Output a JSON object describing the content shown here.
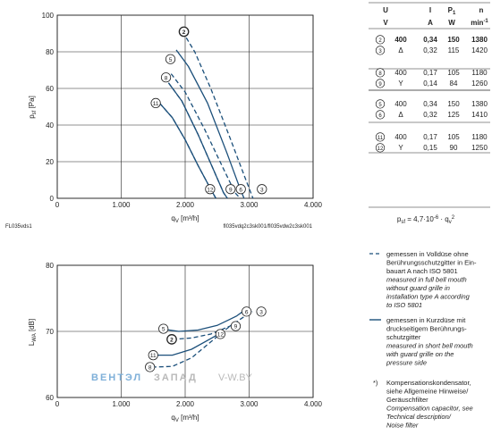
{
  "chart_data": [
    {
      "type": "line",
      "id": "top",
      "ylabel_main": "p",
      "ylabel_sub": "sf",
      "ylabel_unit": " [Pa]",
      "xlabel_main": "q",
      "xlabel_sub": "V",
      "xlabel_unit": " [m³/h]",
      "xlim": [
        0,
        4000
      ],
      "ylim": [
        0,
        100
      ],
      "xticks": [
        0,
        1000,
        2000,
        3000,
        4000
      ],
      "xtick_labels": [
        "0",
        "1.000",
        "2.000",
        "3.000",
        "4.000"
      ],
      "yticks": [
        0,
        20,
        40,
        60,
        80,
        100
      ],
      "ytick_labels": [
        "0",
        "20",
        "40",
        "60",
        "80",
        "100"
      ],
      "corner_left": "FL035vds1",
      "corner_right": "fl035vdq2c3sk001/fl035vdw2c3sk001",
      "series": [
        {
          "name": "2",
          "style": "dashed",
          "x": [
            1960,
            2150,
            2400,
            2700,
            2950,
            3060
          ],
          "y": [
            91,
            80,
            60,
            33,
            10,
            0
          ],
          "label_at": [
            1980,
            91
          ]
        },
        {
          "name": "3",
          "style": "dashed",
          "x": [
            3060,
            3100
          ],
          "y": [
            0,
            0
          ],
          "label_at": [
            3200,
            5
          ]
        },
        {
          "name": "5",
          "style": "solid",
          "x": [
            1860,
            2050,
            2350,
            2650,
            2850,
            2920
          ],
          "y": [
            81,
            72,
            52,
            25,
            6,
            0
          ],
          "label_at": [
            1770,
            76
          ]
        },
        {
          "name": "6",
          "style": "dashed",
          "x": [
            1780,
            2000,
            2300,
            2600,
            2780,
            2860
          ],
          "y": [
            68,
            58,
            38,
            16,
            3,
            0
          ],
          "label_at": [
            2870,
            5
          ]
        },
        {
          "name": "8",
          "style": "dashed",
          "x": [
            1740,
            1950,
            2200,
            2450,
            2600,
            2660
          ],
          "y": [
            63,
            53,
            35,
            15,
            3,
            0
          ],
          "label_at": [
            1700,
            66
          ]
        },
        {
          "name": "9",
          "style": "solid",
          "x": [
            1740,
            1950,
            2200,
            2450,
            2600,
            2660
          ],
          "y": [
            63,
            53,
            35,
            15,
            3,
            0
          ],
          "label_at": [
            2710,
            5
          ]
        },
        {
          "name": "11",
          "style": "solid",
          "x": [
            1600,
            1800,
            2000,
            2200,
            2400,
            2480
          ],
          "y": [
            52,
            44,
            32,
            18,
            5,
            0
          ],
          "label_at": [
            1540,
            52
          ]
        },
        {
          "name": "12",
          "style": "dashed",
          "x": [
            1600,
            1800,
            2000,
            2200,
            2400,
            2480
          ],
          "y": [
            52,
            44,
            32,
            18,
            5,
            0
          ],
          "label_at": [
            2390,
            5
          ]
        }
      ]
    },
    {
      "type": "line",
      "id": "bottom",
      "ylabel_main": "L",
      "ylabel_sub": "WA",
      "ylabel_unit": " [dB]",
      "xlabel_main": "q",
      "xlabel_sub": "V",
      "xlabel_unit": " [m³/h]",
      "xlim": [
        0,
        4000
      ],
      "ylim": [
        60,
        80
      ],
      "xticks": [
        0,
        1000,
        2000,
        3000,
        4000
      ],
      "xtick_labels": [
        "0",
        "1.000",
        "2.000",
        "3.000",
        "4.000"
      ],
      "yticks": [
        60,
        70,
        80
      ],
      "ytick_labels": [
        "60",
        "70",
        "80"
      ],
      "series": [
        {
          "name": "5",
          "style": "solid",
          "x": [
            1680,
            1900,
            2200,
            2500,
            2800,
            2900
          ],
          "y": [
            70.3,
            70.0,
            70.2,
            70.9,
            72.3,
            73.0
          ],
          "label_at": [
            1660,
            70.4
          ]
        },
        {
          "name": "6",
          "style": "solid",
          "x": [
            2900,
            2950
          ],
          "y": [
            73.0,
            73.0
          ],
          "label_at": [
            2960,
            73.0
          ]
        },
        {
          "name": "2",
          "style": "dashed",
          "x": [
            1800,
            2100,
            2400,
            2700,
            2950,
            3050
          ],
          "y": [
            68.8,
            69.0,
            69.6,
            70.8,
            72.4,
            73.0
          ],
          "label_at": [
            1790,
            68.8
          ]
        },
        {
          "name": "3",
          "style": "dashed",
          "x": [
            3050,
            3100
          ],
          "y": [
            73.0,
            73.0
          ],
          "label_at": [
            3190,
            73.0
          ]
        },
        {
          "name": "11",
          "style": "solid",
          "x": [
            1560,
            1800,
            2100,
            2400,
            2600
          ],
          "y": [
            66.4,
            66.4,
            67.3,
            68.9,
            70.0
          ],
          "label_at": [
            1500,
            66.4
          ]
        },
        {
          "name": "12",
          "style": "solid",
          "x": [
            2600,
            2620
          ],
          "y": [
            70.0,
            70.0
          ],
          "label_at": [
            2550,
            69.6
          ]
        },
        {
          "name": "8",
          "style": "dashed",
          "x": [
            1480,
            1800,
            2100,
            2400,
            2700
          ],
          "y": [
            64.6,
            64.7,
            66.0,
            68.4,
            70.8
          ],
          "label_at": [
            1450,
            64.6
          ]
        },
        {
          "name": "9",
          "style": "dashed",
          "x": [
            2700,
            2720
          ],
          "y": [
            70.8,
            70.8
          ],
          "label_at": [
            2790,
            70.8
          ]
        }
      ]
    }
  ],
  "table": {
    "headers": [
      "U",
      "I",
      "P",
      "n"
    ],
    "p_sub": "1",
    "units": [
      "V",
      "A",
      "W",
      "min"
    ],
    "min_sup": "-1",
    "groups": [
      [
        {
          "id": "2",
          "u": "400",
          "sym": "",
          "i": "0,34",
          "p": "150",
          "n": "1380",
          "bold": true
        },
        {
          "id": "3",
          "u": "",
          "sym": "Δ",
          "i": "0,32",
          "p": "115",
          "n": "1420",
          "bold": false
        }
      ],
      [
        {
          "id": "8",
          "u": "400",
          "sym": "",
          "i": "0,17",
          "p": "105",
          "n": "1180",
          "bold": false
        },
        {
          "id": "9",
          "u": "",
          "sym": "Y",
          "i": "0,14",
          "p": "84",
          "n": "1260",
          "bold": false
        }
      ],
      [
        {
          "id": "5",
          "u": "400",
          "sym": "",
          "i": "0,34",
          "p": "150",
          "n": "1380",
          "bold": false
        },
        {
          "id": "6",
          "u": "",
          "sym": "Δ",
          "i": "0,32",
          "p": "125",
          "n": "1410",
          "bold": false
        }
      ],
      [
        {
          "id": "11",
          "u": "400",
          "sym": "",
          "i": "0,17",
          "p": "105",
          "n": "1180",
          "bold": false
        },
        {
          "id": "12",
          "u": "",
          "sym": "Y",
          "i": "0,15",
          "p": "90",
          "n": "1250",
          "bold": false
        }
      ]
    ],
    "formula": {
      "p": "p",
      "sub": "sf",
      "rest": " = 4,7·10",
      "exp": "-6",
      "tail": " · q",
      "qsub": "v",
      "qsup": "2"
    }
  },
  "legend": {
    "dashed": {
      "de": [
        "gemessen in Volldüse ohne",
        "Berührungsschutzgitter in Ein-",
        "bauart A nach ISO 5801"
      ],
      "en": [
        "measured in full bell mouth",
        "without guard grille in",
        "installation type A according",
        "to ISO 5801"
      ]
    },
    "solid": {
      "de": [
        "gemessen in Kurzdüse mit",
        "druckseitigem Berührungs-",
        "schutzgitter"
      ],
      "en": [
        "measured in short bell mouth",
        "with guard grille on the",
        "pressure side"
      ]
    },
    "note": {
      "mark": "*)",
      "de": [
        "Kompensationskondensator,",
        "siehe Allgemeine Hinweise/",
        "Geräuschfilter"
      ],
      "en": [
        "Compensation capacitor, see",
        "Technical description/",
        "Noise filter"
      ]
    }
  },
  "watermark": {
    "part1": "ВЕНТЭЛ",
    "part2": "ЗАПАД",
    "part3": "V-W.BY"
  },
  "colors": {
    "curve": "#1b4f7a",
    "watermark_blue": "#7fb0d9",
    "watermark_grey": "#b9b9b9",
    "ink": "#222222"
  }
}
